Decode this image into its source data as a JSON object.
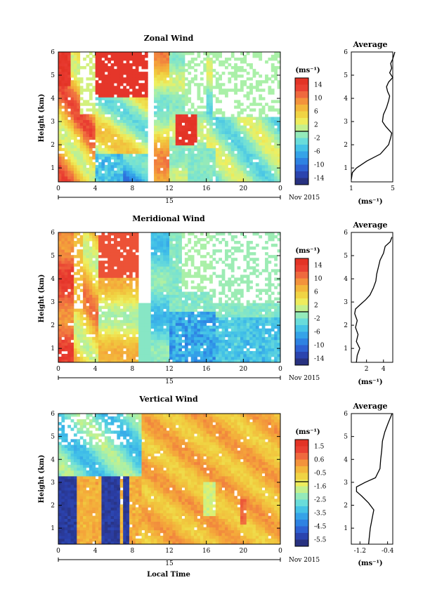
{
  "panels": [
    {
      "title": "Zonal Wind",
      "cbar_unit": "(ms⁻¹)",
      "cbar_ticks": [
        "14",
        "10",
        "6",
        "2",
        "-2",
        "-6",
        "-10",
        "-14"
      ],
      "avg_title": "Average",
      "avg_xticks": [
        "1",
        "5"
      ],
      "avg_xlabel": "(ms⁻¹)",
      "avg_profile": {
        "heights": [
          0.5,
          0.8,
          1.0,
          1.3,
          1.6,
          2.0,
          2.3,
          2.5,
          2.8,
          3.0,
          3.3,
          3.6,
          3.9,
          4.1,
          4.3,
          4.5,
          4.7,
          4.9,
          5.1,
          5.3,
          5.5,
          5.7,
          6.0
        ],
        "values": [
          1.0,
          1.1,
          1.5,
          2.5,
          3.8,
          4.6,
          4.8,
          4.9,
          4.3,
          4.0,
          4.1,
          4.4,
          4.6,
          4.7,
          4.5,
          4.4,
          4.6,
          5.0,
          4.7,
          4.9,
          4.8,
          5.0,
          5.2
        ]
      }
    },
    {
      "title": "Meridional Wind",
      "cbar_unit": "(ms⁻¹)",
      "cbar_ticks": [
        "14",
        "10",
        "6",
        "2",
        "-2",
        "-6",
        "-10",
        "-14"
      ],
      "avg_title": "Average",
      "avg_xticks": [
        "2",
        "4"
      ],
      "avg_xlabel": "(ms⁻¹)",
      "avg_profile": {
        "heights": [
          0.4,
          0.7,
          1.0,
          1.3,
          1.6,
          1.9,
          2.2,
          2.5,
          2.7,
          2.9,
          3.1,
          3.3,
          3.6,
          3.9,
          4.2,
          4.5,
          4.8,
          5.1,
          5.4,
          5.6,
          5.8
        ],
        "values": [
          0.8,
          0.9,
          1.2,
          0.8,
          1.0,
          0.7,
          0.9,
          0.6,
          0.7,
          1.3,
          1.9,
          2.4,
          2.8,
          3.1,
          3.2,
          3.4,
          3.6,
          4.0,
          4.2,
          4.8,
          5.0
        ]
      }
    },
    {
      "title": "Vertical Wind",
      "cbar_unit": "(ms⁻¹)",
      "cbar_ticks": [
        "1.5",
        "0.6",
        "-0.5",
        "-1.6",
        "-2.5",
        "-3.5",
        "-4.5",
        "-5.5"
      ],
      "avg_title": "Average",
      "avg_xticks": [
        "-1.2",
        "-0.4"
      ],
      "avg_xlabel": "(ms⁻¹)",
      "avg_profile": {
        "heights": [
          0.3,
          0.6,
          1.0,
          1.4,
          1.8,
          2.1,
          2.4,
          2.6,
          2.8,
          3.0,
          3.2,
          3.6,
          4.0,
          4.4,
          4.8,
          5.2,
          5.6,
          6.0
        ],
        "values": [
          -0.95,
          -0.93,
          -0.9,
          -0.85,
          -0.8,
          -0.95,
          -1.15,
          -1.3,
          -1.3,
          -1.05,
          -0.75,
          -0.62,
          -0.6,
          -0.57,
          -0.55,
          -0.48,
          -0.38,
          -0.27
        ]
      }
    }
  ],
  "y_label": "Height (km)",
  "y_ticks": [
    "1",
    "2",
    "3",
    "4",
    "5",
    "6"
  ],
  "x_ticks": [
    "0",
    "4",
    "8",
    "12",
    "16",
    "20",
    "0"
  ],
  "date_day": "15",
  "date_label": "Nov 2015",
  "x_label": "Local Time",
  "chart_data": [
    {
      "type": "heatmap",
      "title": "Zonal Wind",
      "ylabel": "Height (km)",
      "ylim": [
        0.4,
        6.0
      ],
      "x_range_hours": [
        0,
        24
      ],
      "colorbar_unit": "(ms⁻¹)",
      "colorbar_range": [
        -16,
        16
      ]
    },
    {
      "type": "line",
      "title": "Average",
      "ylim": [
        0.4,
        6.0
      ],
      "xlim": [
        1,
        5
      ]
    },
    {
      "type": "heatmap",
      "title": "Meridional Wind",
      "ylabel": "Height (km)",
      "ylim": [
        0.4,
        6.0
      ],
      "x_range_hours": [
        0,
        24
      ],
      "colorbar_unit": "(ms⁻¹)",
      "colorbar_range": [
        -16,
        16
      ]
    },
    {
      "type": "line",
      "title": "Average",
      "ylim": [
        0.4,
        6.0
      ],
      "xlim": [
        0.2,
        5.1
      ]
    },
    {
      "type": "heatmap",
      "title": "Vertical Wind",
      "ylabel": "Height (km)",
      "xlabel": "Local Time",
      "ylim": [
        0.3,
        6.0
      ],
      "x_range_hours": [
        0,
        24
      ],
      "colorbar_unit": "(ms⁻¹)",
      "colorbar_range": [
        -6,
        2
      ]
    },
    {
      "type": "line",
      "title": "Average",
      "ylim": [
        0.3,
        6.0
      ],
      "xlim": [
        -1.45,
        -0.25
      ]
    }
  ],
  "colors": {
    "scale": [
      "#262a68",
      "#2b3fa8",
      "#2e66d8",
      "#2e92e8",
      "#40bfe8",
      "#6fe0d8",
      "#aaf0a8",
      "#eef060",
      "#f0d040",
      "#f4a83a",
      "#f07040",
      "#e83a30",
      "#e03020"
    ],
    "line": "#000000"
  }
}
